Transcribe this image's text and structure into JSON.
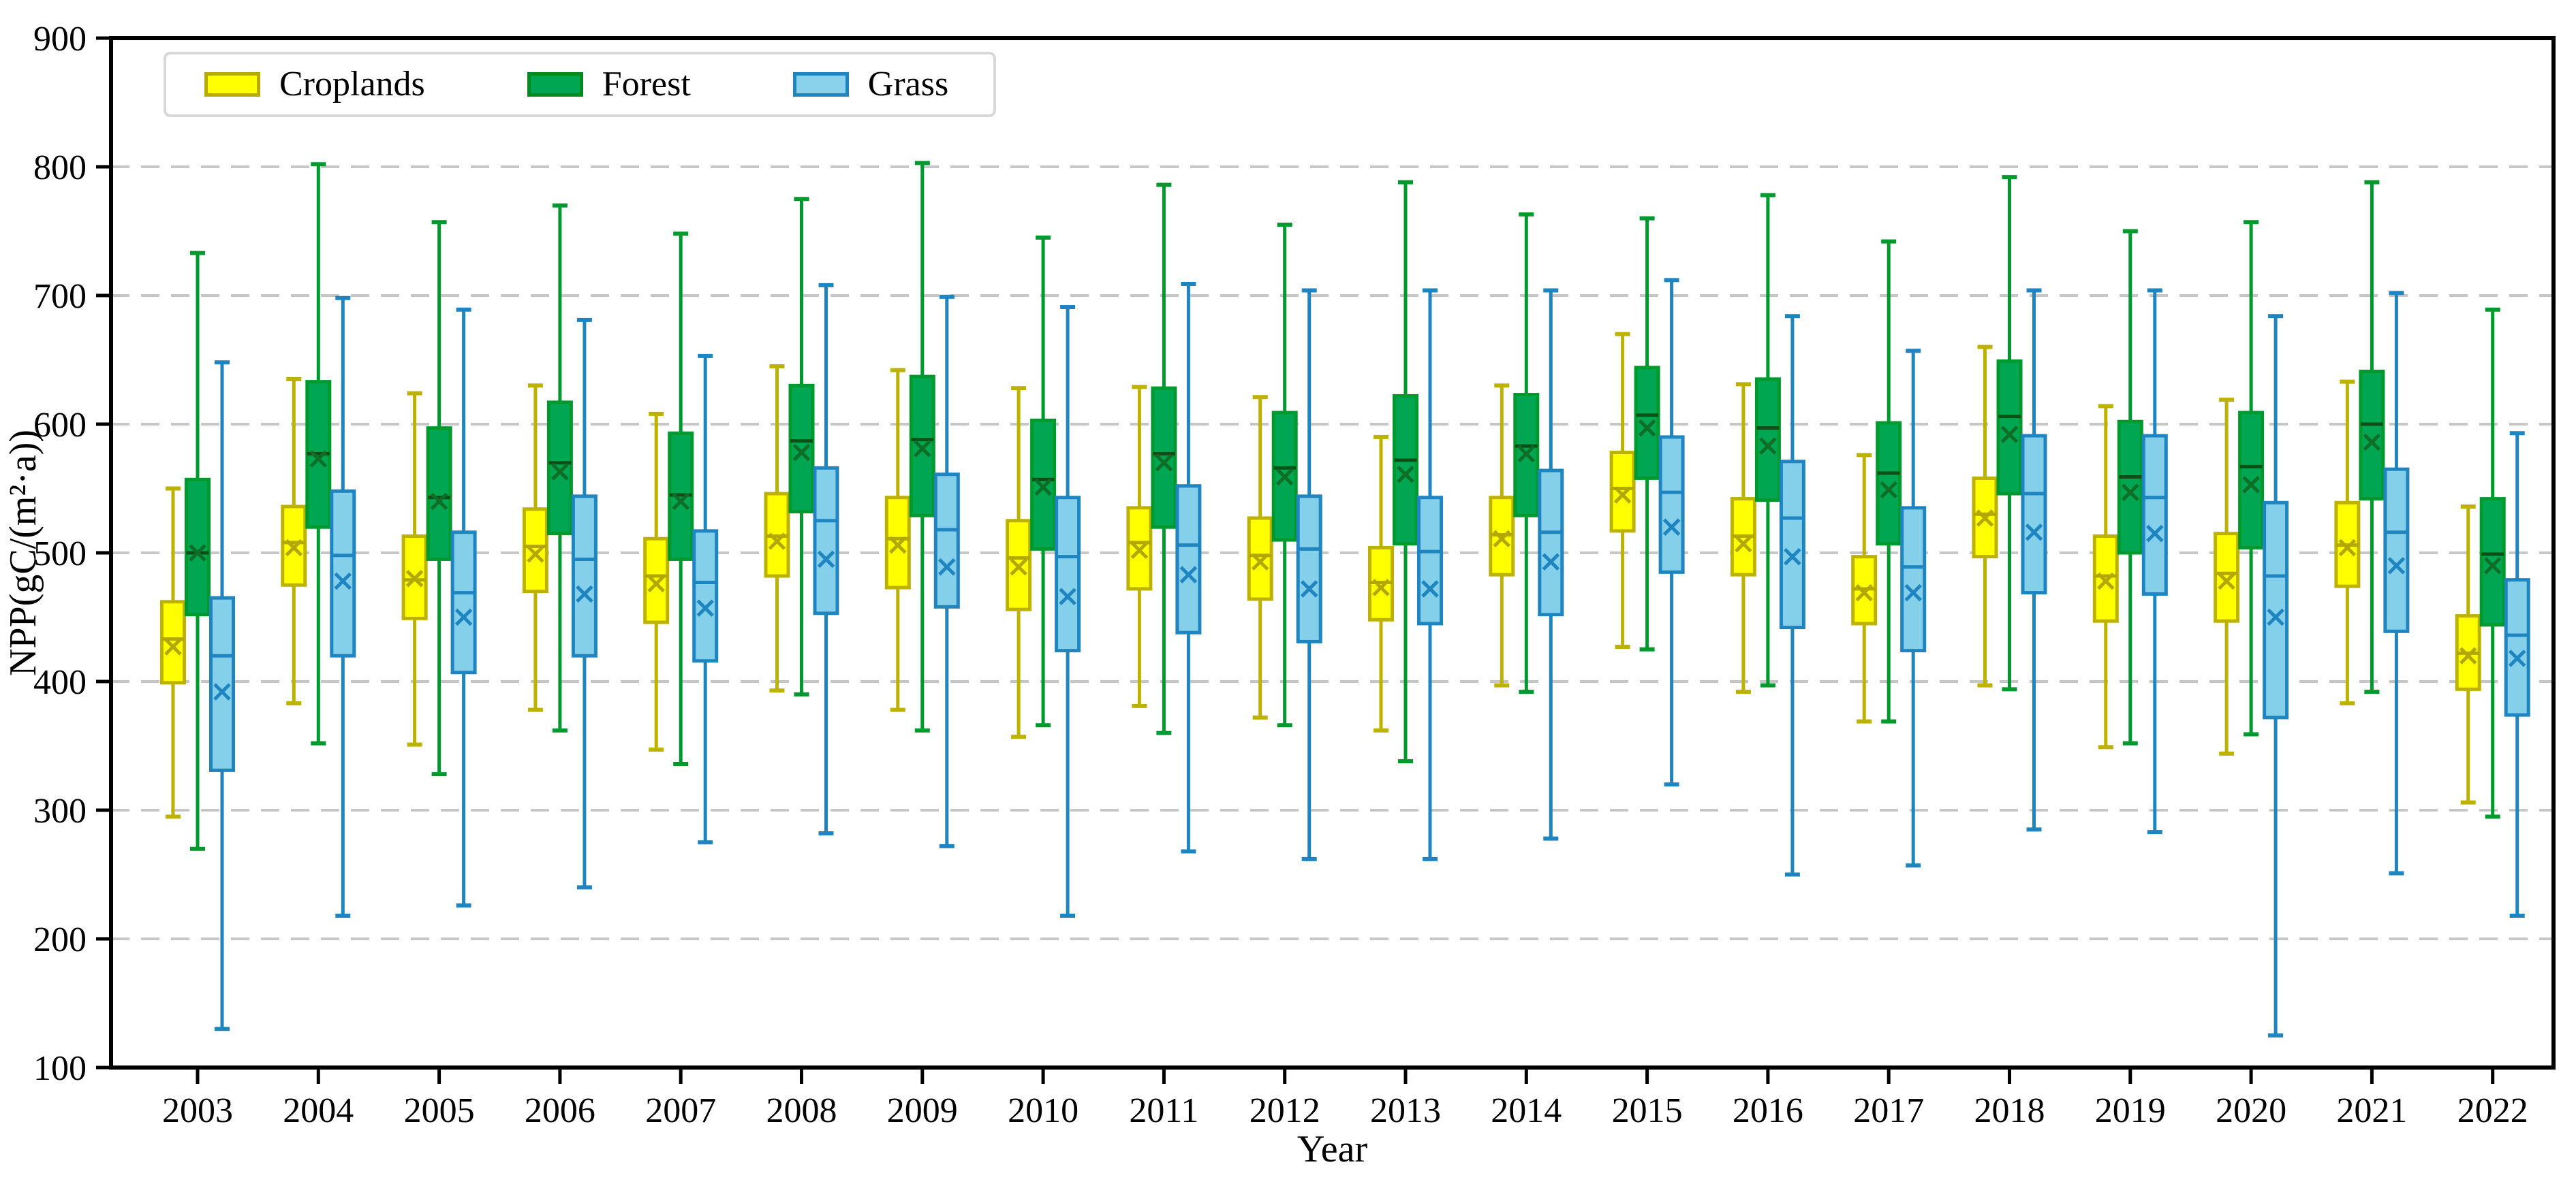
{
  "figure": {
    "xlabel": "Year",
    "ylabel": "NPP(gC/(m²·a))",
    "background": "#ffffff",
    "grid_color": "#c7c7c7",
    "spine_color": "#000000"
  },
  "legend": {
    "position": "upper-left",
    "items": [
      {
        "label": "Croplands",
        "fill": "#ffff00",
        "edge": "#b7ab00"
      },
      {
        "label": "Forest",
        "fill": "#00a651",
        "edge": "#008a1e"
      },
      {
        "label": "Grass",
        "fill": "#8ad2ec",
        "edge": "#1e85c1"
      }
    ]
  },
  "chart_data": {
    "type": "boxplot",
    "title": "",
    "xlabel": "Year",
    "ylabel": "NPP(gC/(m²·a))",
    "ylim": [
      100,
      900
    ],
    "yticks": [
      100,
      200,
      300,
      400,
      500,
      600,
      700,
      800,
      900
    ],
    "grid": "horizontal dashed at 200-800",
    "legend_position": "upper-left",
    "categories": [
      "2003",
      "2004",
      "2005",
      "2006",
      "2007",
      "2008",
      "2009",
      "2010",
      "2011",
      "2012",
      "2013",
      "2014",
      "2015",
      "2016",
      "2017",
      "2018",
      "2019",
      "2020",
      "2021",
      "2022"
    ],
    "series": [
      {
        "name": "Croplands",
        "fill": "#ffff00",
        "edge": "#bdb200",
        "whisker": "#bdb200",
        "median_color": "#b3a800",
        "mean_color": "#b3a800",
        "boxes": [
          {
            "min": 295,
            "q1": 399,
            "median": 433,
            "mean": 427,
            "q3": 462,
            "max": 550
          },
          {
            "min": 383,
            "q1": 475,
            "median": 508,
            "mean": 504,
            "q3": 536,
            "max": 635
          },
          {
            "min": 351,
            "q1": 449,
            "median": 479,
            "mean": 480,
            "q3": 513,
            "max": 624
          },
          {
            "min": 378,
            "q1": 470,
            "median": 505,
            "mean": 499,
            "q3": 534,
            "max": 630
          },
          {
            "min": 347,
            "q1": 446,
            "median": 482,
            "mean": 476,
            "q3": 511,
            "max": 608
          },
          {
            "min": 393,
            "q1": 482,
            "median": 513,
            "mean": 509,
            "q3": 546,
            "max": 645
          },
          {
            "min": 378,
            "q1": 473,
            "median": 511,
            "mean": 506,
            "q3": 543,
            "max": 642
          },
          {
            "min": 357,
            "q1": 456,
            "median": 496,
            "mean": 489,
            "q3": 525,
            "max": 628
          },
          {
            "min": 381,
            "q1": 472,
            "median": 508,
            "mean": 502,
            "q3": 535,
            "max": 629
          },
          {
            "min": 372,
            "q1": 464,
            "median": 498,
            "mean": 493,
            "q3": 527,
            "max": 621
          },
          {
            "min": 362,
            "q1": 448,
            "median": 477,
            "mean": 473,
            "q3": 504,
            "max": 590
          },
          {
            "min": 397,
            "q1": 483,
            "median": 514,
            "mean": 511,
            "q3": 543,
            "max": 630
          },
          {
            "min": 427,
            "q1": 517,
            "median": 550,
            "mean": 545,
            "q3": 578,
            "max": 670
          },
          {
            "min": 392,
            "q1": 483,
            "median": 513,
            "mean": 507,
            "q3": 542,
            "max": 631
          },
          {
            "min": 369,
            "q1": 445,
            "median": 472,
            "mean": 469,
            "q3": 497,
            "max": 576
          },
          {
            "min": 397,
            "q1": 497,
            "median": 530,
            "mean": 527,
            "q3": 558,
            "max": 660
          },
          {
            "min": 349,
            "q1": 447,
            "median": 482,
            "mean": 478,
            "q3": 513,
            "max": 614
          },
          {
            "min": 344,
            "q1": 447,
            "median": 484,
            "mean": 478,
            "q3": 515,
            "max": 619
          },
          {
            "min": 383,
            "q1": 474,
            "median": 506,
            "mean": 504,
            "q3": 539,
            "max": 633
          },
          {
            "min": 306,
            "q1": 394,
            "median": 422,
            "mean": 420,
            "q3": 451,
            "max": 536
          }
        ]
      },
      {
        "name": "Forest",
        "fill": "#00a651",
        "edge": "#00992e",
        "whisker": "#00992e",
        "median_color": "#0b4f16",
        "mean_color": "#0e6e26",
        "boxes": [
          {
            "min": 270,
            "q1": 452,
            "median": 500,
            "mean": 500,
            "q3": 557,
            "max": 733
          },
          {
            "min": 352,
            "q1": 520,
            "median": 577,
            "mean": 573,
            "q3": 633,
            "max": 802
          },
          {
            "min": 328,
            "q1": 495,
            "median": 543,
            "mean": 540,
            "q3": 597,
            "max": 757
          },
          {
            "min": 362,
            "q1": 515,
            "median": 570,
            "mean": 563,
            "q3": 617,
            "max": 770
          },
          {
            "min": 336,
            "q1": 495,
            "median": 545,
            "mean": 540,
            "q3": 593,
            "max": 748
          },
          {
            "min": 390,
            "q1": 532,
            "median": 587,
            "mean": 578,
            "q3": 630,
            "max": 775
          },
          {
            "min": 362,
            "q1": 529,
            "median": 588,
            "mean": 581,
            "q3": 637,
            "max": 803
          },
          {
            "min": 366,
            "q1": 503,
            "median": 557,
            "mean": 551,
            "q3": 603,
            "max": 745
          },
          {
            "min": 360,
            "q1": 520,
            "median": 577,
            "mean": 570,
            "q3": 628,
            "max": 786
          },
          {
            "min": 366,
            "q1": 510,
            "median": 566,
            "mean": 559,
            "q3": 609,
            "max": 755
          },
          {
            "min": 338,
            "q1": 507,
            "median": 572,
            "mean": 561,
            "q3": 622,
            "max": 788
          },
          {
            "min": 392,
            "q1": 529,
            "median": 583,
            "mean": 577,
            "q3": 623,
            "max": 763
          },
          {
            "min": 425,
            "q1": 558,
            "median": 607,
            "mean": 597,
            "q3": 644,
            "max": 760
          },
          {
            "min": 397,
            "q1": 541,
            "median": 597,
            "mean": 583,
            "q3": 635,
            "max": 778
          },
          {
            "min": 369,
            "q1": 507,
            "median": 562,
            "mean": 549,
            "q3": 601,
            "max": 742
          },
          {
            "min": 394,
            "q1": 546,
            "median": 606,
            "mean": 592,
            "q3": 649,
            "max": 792
          },
          {
            "min": 352,
            "q1": 500,
            "median": 559,
            "mean": 547,
            "q3": 602,
            "max": 750
          },
          {
            "min": 359,
            "q1": 504,
            "median": 567,
            "mean": 553,
            "q3": 609,
            "max": 757
          },
          {
            "min": 392,
            "q1": 542,
            "median": 600,
            "mean": 586,
            "q3": 641,
            "max": 788
          },
          {
            "min": 295,
            "q1": 444,
            "median": 499,
            "mean": 490,
            "q3": 542,
            "max": 689
          }
        ]
      },
      {
        "name": "Grass",
        "fill": "#84cfe9",
        "edge": "#1e85c1",
        "whisker": "#1e85c1",
        "median_color": "#1e85c1",
        "mean_color": "#1e85c1",
        "boxes": [
          {
            "min": 130,
            "q1": 331,
            "median": 420,
            "mean": 392,
            "q3": 465,
            "max": 648
          },
          {
            "min": 218,
            "q1": 420,
            "median": 498,
            "mean": 478,
            "q3": 548,
            "max": 698
          },
          {
            "min": 226,
            "q1": 407,
            "median": 469,
            "mean": 450,
            "q3": 516,
            "max": 689
          },
          {
            "min": 240,
            "q1": 420,
            "median": 495,
            "mean": 468,
            "q3": 544,
            "max": 681
          },
          {
            "min": 275,
            "q1": 416,
            "median": 477,
            "mean": 457,
            "q3": 517,
            "max": 653
          },
          {
            "min": 282,
            "q1": 453,
            "median": 525,
            "mean": 495,
            "q3": 566,
            "max": 708
          },
          {
            "min": 272,
            "q1": 458,
            "median": 518,
            "mean": 489,
            "q3": 561,
            "max": 699
          },
          {
            "min": 218,
            "q1": 424,
            "median": 497,
            "mean": 466,
            "q3": 543,
            "max": 691
          },
          {
            "min": 268,
            "q1": 438,
            "median": 506,
            "mean": 483,
            "q3": 552,
            "max": 709
          },
          {
            "min": 262,
            "q1": 431,
            "median": 503,
            "mean": 472,
            "q3": 544,
            "max": 704
          },
          {
            "min": 262,
            "q1": 445,
            "median": 501,
            "mean": 472,
            "q3": 543,
            "max": 704
          },
          {
            "min": 278,
            "q1": 452,
            "median": 516,
            "mean": 493,
            "q3": 564,
            "max": 704
          },
          {
            "min": 320,
            "q1": 485,
            "median": 547,
            "mean": 520,
            "q3": 590,
            "max": 712
          },
          {
            "min": 250,
            "q1": 442,
            "median": 527,
            "mean": 497,
            "q3": 571,
            "max": 684
          },
          {
            "min": 257,
            "q1": 424,
            "median": 489,
            "mean": 469,
            "q3": 535,
            "max": 657
          },
          {
            "min": 285,
            "q1": 469,
            "median": 546,
            "mean": 516,
            "q3": 591,
            "max": 704
          },
          {
            "min": 283,
            "q1": 468,
            "median": 543,
            "mean": 515,
            "q3": 591,
            "max": 704
          },
          {
            "min": 125,
            "q1": 372,
            "median": 482,
            "mean": 450,
            "q3": 539,
            "max": 684
          },
          {
            "min": 251,
            "q1": 439,
            "median": 516,
            "mean": 490,
            "q3": 565,
            "max": 702
          },
          {
            "min": 218,
            "q1": 374,
            "median": 436,
            "mean": 418,
            "q3": 479,
            "max": 593
          }
        ]
      }
    ]
  }
}
